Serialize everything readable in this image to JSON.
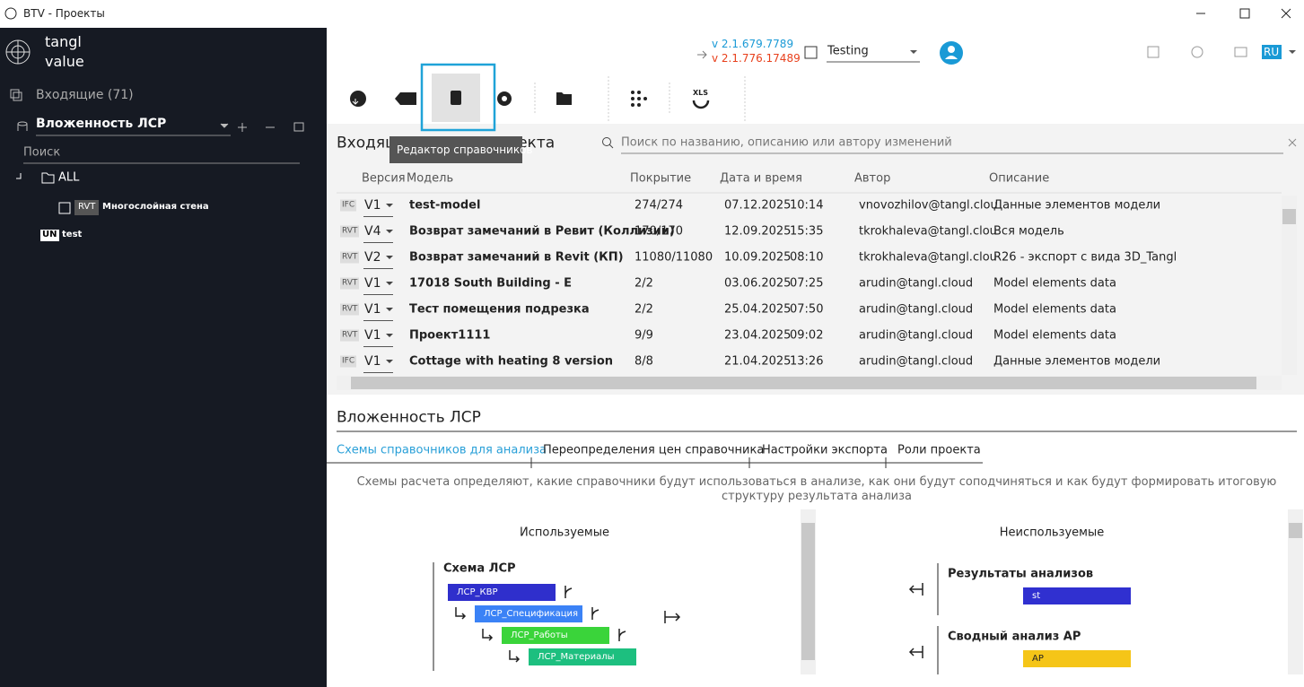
{
  "window": {
    "title": "BTV - Проекты"
  },
  "sidebar": {
    "brand": [
      "tangl",
      "value"
    ],
    "inbox": "Входящие (71)",
    "project": "Вложенность ЛСР",
    "search": "Поиск",
    "tree": [
      {
        "label": "ALL"
      },
      {
        "badge": "RVT",
        "label": "Многослойная стена"
      },
      {
        "badge": "UN",
        "label": "test"
      }
    ]
  },
  "header": {
    "version_current": "v 2.1.679.7789",
    "version_new": "v 2.1.776.17489",
    "environment": "Testing",
    "language": "RU"
  },
  "toolbar": {
    "export_icon_label": "XLS",
    "tooltip": "Редактор справочников"
  },
  "models": {
    "title": "Входящие модели проекта",
    "search_placeholder": "Поиск по названию, описанию или автору изменений",
    "columns": [
      "Версия",
      "Модель",
      "Покрытие",
      "Дата и время",
      "Автор",
      "Описание"
    ],
    "rows": [
      {
        "format": "IFC",
        "version": "V1",
        "model": "test-model",
        "coverage": "274/274",
        "date": "07.12.2025",
        "time": "10:14",
        "author": "vnovozhilov@tangl.clou",
        "description": "Данные элементов модели"
      },
      {
        "format": "RVT",
        "version": "V4",
        "model": "Возврат замечаний в Ревит (Коллизии)",
        "coverage": "170/170",
        "date": "12.09.2025",
        "time": "15:35",
        "author": "tkrokhaleva@tangl.clou",
        "description": "Вся модель"
      },
      {
        "format": "RVT",
        "version": "V2",
        "model": "Возврат замечаний в Revit (КП)",
        "coverage": "11080/11080",
        "date": "10.09.2025",
        "time": "08:10",
        "author": "tkrokhaleva@tangl.clou",
        "description": "R26 - экспорт с вида 3D_Tangl"
      },
      {
        "format": "RVT",
        "version": "V1",
        "model": "17018 South Building - E",
        "coverage": "2/2",
        "date": "03.06.2025",
        "time": "07:25",
        "author": "arudin@tangl.cloud",
        "description": "Model elements data"
      },
      {
        "format": "RVT",
        "version": "V1",
        "model": "Тест помещения подрезка",
        "coverage": "2/2",
        "date": "25.04.2025",
        "time": "07:50",
        "author": "arudin@tangl.cloud",
        "description": "Model elements data"
      },
      {
        "format": "RVT",
        "version": "V1",
        "model": "Проект1111",
        "coverage": "9/9",
        "date": "23.04.2025",
        "time": "09:02",
        "author": "arudin@tangl.cloud",
        "description": "Model elements data"
      },
      {
        "format": "IFC",
        "version": "V1",
        "model": "Cottage with heating 8 version",
        "coverage": "8/8",
        "date": "21.04.2025",
        "time": "13:26",
        "author": "arudin@tangl.cloud",
        "description": "Данные элементов модели"
      }
    ]
  },
  "section": {
    "title": "Вложенность ЛСР",
    "tabs": [
      "Схемы справочников для анализа",
      "Переопределения цен справочника",
      "Настройки экспорта",
      "Роли проекта"
    ],
    "description": "Схемы расчета определяют, какие справочники будут использоваться в анализе, как они будут соподчиняться и как будут формировать итоговую структуру результата анализа",
    "used_title": "Используемые",
    "unused_title": "Неиспользуемые",
    "used_scheme": {
      "name": "Схема ЛСР",
      "items": [
        "ЛСР_КВР",
        "ЛСР_Спецификация",
        "ЛСР_Работы",
        "ЛСР_Материалы"
      ]
    },
    "unused": [
      {
        "name": "Результаты анализов",
        "item": "st"
      },
      {
        "name": "Сводный анализ АР",
        "item": "AP"
      }
    ]
  }
}
